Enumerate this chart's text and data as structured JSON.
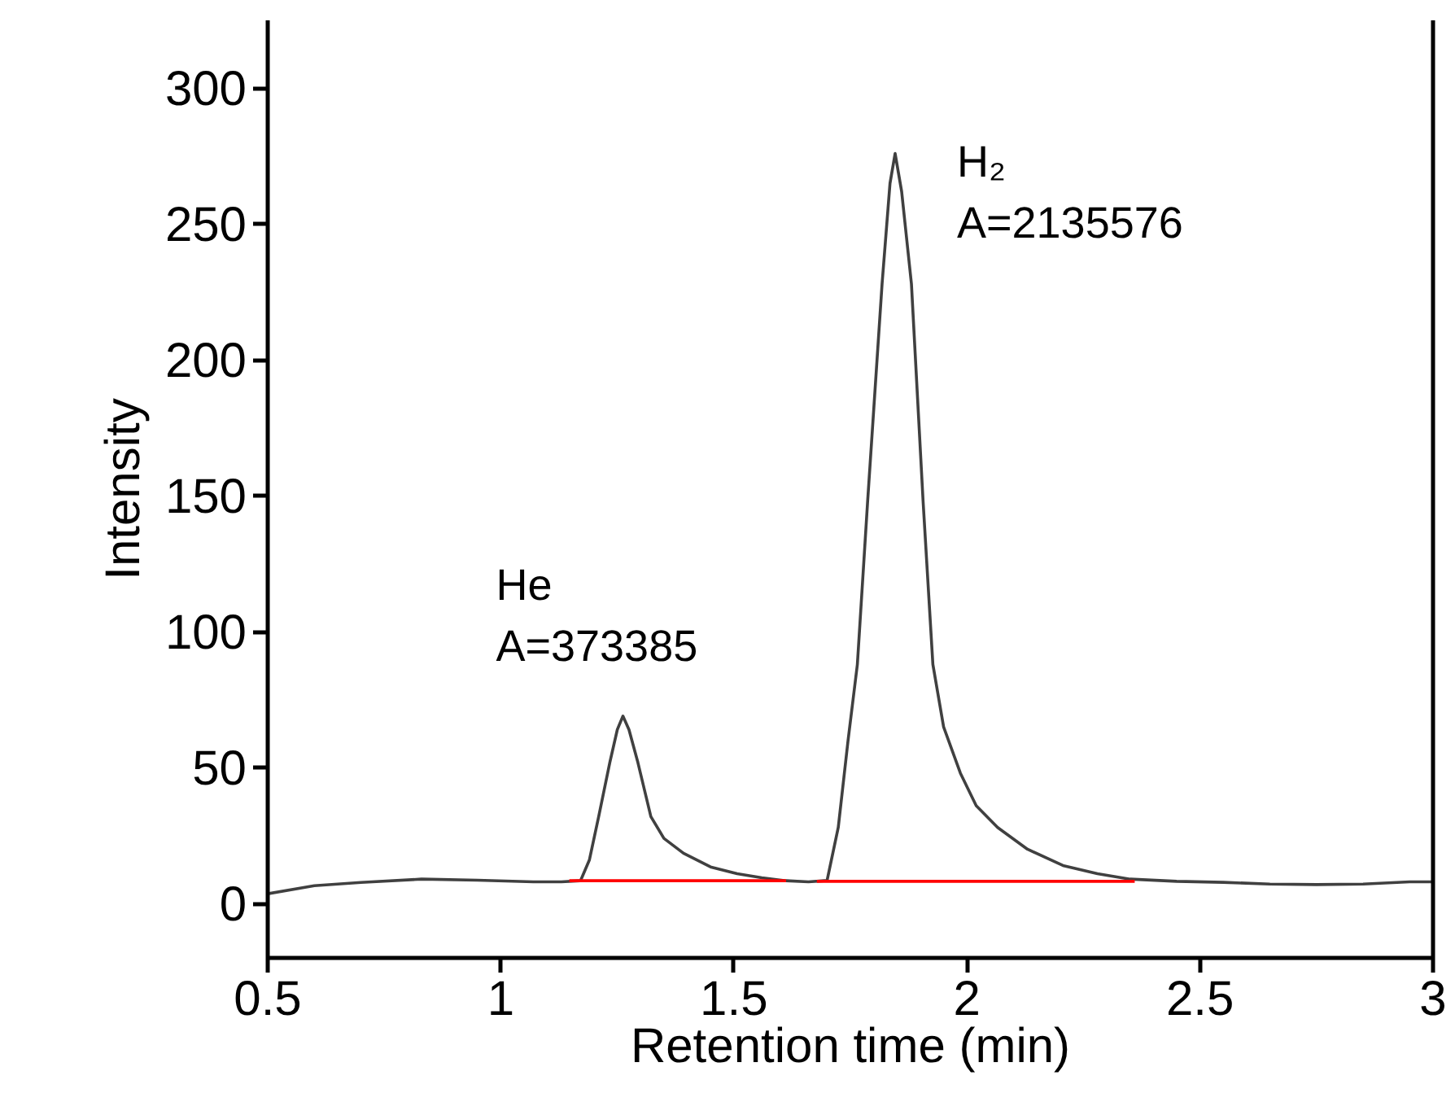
{
  "chart_data": {
    "type": "line",
    "xlabel": "Retention time (min)",
    "ylabel": "Intensity",
    "xlim": [
      0.5,
      3
    ],
    "xticks": [
      0.5,
      1,
      1.5,
      2,
      2.5,
      3
    ],
    "ylim": [
      -20,
      325
    ],
    "yticks": [
      0,
      50,
      100,
      150,
      200,
      250,
      300
    ],
    "grid": false,
    "series": [
      {
        "color": "#404040",
        "x": [
          0.5,
          0.6,
          0.7,
          0.83,
          0.95,
          1.07,
          1.13,
          1.171,
          1.19,
          1.21,
          1.234,
          1.25,
          1.262,
          1.275,
          1.294,
          1.322,
          1.35,
          1.392,
          1.45,
          1.507,
          1.56,
          1.612,
          1.66,
          1.7,
          1.724,
          1.745,
          1.765,
          1.787,
          1.818,
          1.835,
          1.846,
          1.86,
          1.881,
          1.906,
          1.927,
          1.95,
          1.986,
          2.02,
          2.066,
          2.13,
          2.206,
          2.28,
          2.35,
          2.45,
          2.55,
          2.65,
          2.75,
          2.85,
          2.95,
          3.0
        ],
        "values": [
          3.6,
          6.6,
          7.8,
          9,
          8.6,
          8,
          8,
          8.4,
          16,
          32,
          52,
          64,
          69,
          64,
          52,
          32,
          24,
          18.5,
          13.5,
          11,
          9.5,
          8.4,
          8,
          8.5,
          28,
          60,
          88,
          148,
          228,
          265,
          276,
          262,
          228,
          148,
          88,
          65,
          48,
          36,
          28,
          20,
          14,
          11,
          9,
          8.2,
          7.8,
          7.2,
          7,
          7.2,
          8,
          8
        ]
      },
      {
        "color": "#ff0000",
        "x": [
          1.147,
          1.612
        ],
        "values": [
          8.4,
          8.4
        ]
      },
      {
        "color": "#ff0000",
        "x": [
          1.678,
          2.36
        ],
        "values": [
          8.2,
          8.2
        ]
      }
    ],
    "annotations": [
      {
        "text": "He\nA=373385",
        "x": 1.262,
        "y": 69
      },
      {
        "text": "H₂\nA=2135576",
        "x": 1.846,
        "y": 276
      }
    ]
  }
}
